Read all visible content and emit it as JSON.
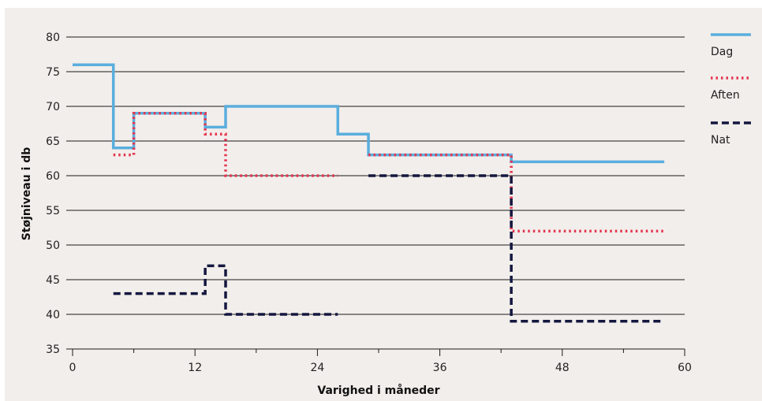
{
  "chart_data": {
    "type": "line",
    "step": true,
    "xlabel": "Varighed i måneder",
    "ylabel": "Støjniveau i db",
    "xlim": [
      0,
      60
    ],
    "ylim": [
      35,
      80
    ],
    "xticks": [
      0,
      12,
      24,
      36,
      48,
      60
    ],
    "xticks_minor": [
      6,
      18,
      30,
      42,
      54
    ],
    "yticks": [
      35,
      40,
      45,
      50,
      55,
      60,
      65,
      70,
      75,
      80
    ],
    "grid": "horizontal",
    "legend_position": "right",
    "colors": {
      "background": "#f2eeeb"
    },
    "series": [
      {
        "name": "Dag",
        "color": "#5aaedd",
        "style": "solid",
        "points": [
          [
            0,
            76
          ],
          [
            4,
            76
          ],
          [
            4,
            64
          ],
          [
            6,
            64
          ],
          [
            6,
            69
          ],
          [
            13,
            69
          ],
          [
            13,
            67
          ],
          [
            15,
            67
          ],
          [
            15,
            70
          ],
          [
            26,
            70
          ],
          [
            26,
            66
          ],
          [
            29,
            66
          ],
          [
            29,
            63
          ],
          [
            43,
            63
          ],
          [
            43,
            62
          ],
          [
            58,
            62
          ]
        ]
      },
      {
        "name": "Aften",
        "color": "#e5344f",
        "style": "dotted",
        "points": [
          [
            4,
            63
          ],
          [
            6,
            63
          ],
          [
            6,
            69
          ],
          [
            13,
            69
          ],
          [
            13,
            66
          ],
          [
            15,
            66
          ],
          [
            15,
            60
          ],
          [
            26,
            60
          ]
        ],
        "points2": [
          [
            29,
            63
          ],
          [
            43,
            63
          ],
          [
            43,
            52
          ],
          [
            58,
            52
          ]
        ]
      },
      {
        "name": "Nat",
        "color": "#14173f",
        "style": "dashed",
        "points": [
          [
            4,
            43
          ],
          [
            13,
            43
          ],
          [
            13,
            47
          ],
          [
            15,
            47
          ],
          [
            15,
            40
          ],
          [
            26,
            40
          ]
        ],
        "points2": [
          [
            29,
            60
          ],
          [
            43,
            60
          ],
          [
            43,
            39
          ],
          [
            58,
            39
          ]
        ]
      }
    ]
  }
}
